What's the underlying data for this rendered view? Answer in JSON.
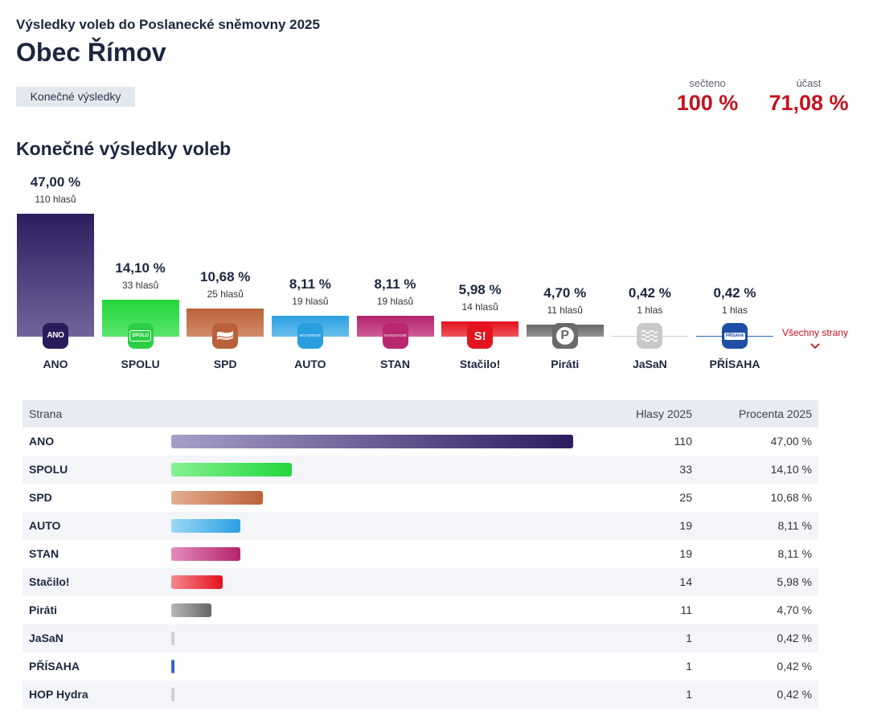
{
  "header": {
    "subtitle": "Výsledky voleb do Poslanecké sněmovny 2025",
    "title": "Obec Římov",
    "tab_label": "Konečné výsledky",
    "counted_label": "sečteno",
    "counted_value": "100 %",
    "turnout_label": "účast",
    "turnout_value": "71,08 %"
  },
  "chart_data": {
    "type": "bar",
    "title": "Konečné výsledky voleb",
    "ylim": [
      0,
      47
    ],
    "categories": [
      "ANO",
      "SPOLU",
      "SPD",
      "AUTO",
      "STAN",
      "Stačilo!",
      "Piráti",
      "JaSaN",
      "PŘÍSAHA"
    ],
    "values": [
      47.0,
      14.1,
      10.68,
      8.11,
      8.11,
      5.98,
      4.7,
      0.42,
      0.42
    ],
    "value_labels": [
      "47,00 %",
      "14,10 %",
      "10,68 %",
      "8,11 %",
      "8,11 %",
      "5,98 %",
      "4,70 %",
      "0,42 %",
      "0,42 %"
    ],
    "vote_labels": [
      "110 hlasů",
      "33 hlasů",
      "25 hlasů",
      "19 hlasů",
      "19 hlasů",
      "14 hlasů",
      "11 hlasů",
      "1 hlas",
      "1 hlas"
    ],
    "colors": [
      {
        "dark": "#2d1d5f",
        "light": "#a79ec9"
      },
      {
        "dark": "#22d63c",
        "light": "#86f193"
      },
      {
        "dark": "#bb6238",
        "light": "#e3ae92"
      },
      {
        "dark": "#2b9fe2",
        "light": "#9ad8f4"
      },
      {
        "dark": "#b3236c",
        "light": "#e38cbb"
      },
      {
        "dark": "#e3121d",
        "light": "#f5888c"
      },
      {
        "dark": "#666666",
        "light": "#b8b8b8"
      },
      {
        "dark": "#cccccc",
        "light": "#d6d6d6"
      },
      {
        "dark": "#2a5bbd",
        "light": "#3d72d4"
      }
    ],
    "logos": [
      {
        "icon": "ano-logo-icon",
        "bg": "#2a1c5a",
        "text": "ANO"
      },
      {
        "icon": "spolu-logo-icon",
        "bg": "#2bcf43",
        "text": "SPOLU"
      },
      {
        "icon": "spd-logo-icon",
        "bg": "#b8613a"
      },
      {
        "icon": "motoriste-logo-icon",
        "bg": "#2a9fe0",
        "text": "MOTORISTÉ"
      },
      {
        "icon": "stan-logo-icon",
        "bg": "#b8276f",
        "text": "STAROSTOVÉ"
      },
      {
        "icon": "stacilo-logo-icon",
        "bg": "#e2141f",
        "text": "S!"
      },
      {
        "icon": "pirati-logo-icon",
        "bg": "#6a6a6a",
        "text": "P"
      },
      {
        "icon": "jasan-logo-icon",
        "bg": "#c9c9c9"
      },
      {
        "icon": "prisaha-logo-icon",
        "bg": "#1f4ea6",
        "text": "PŘÍSAHA"
      }
    ]
  },
  "all_parties_link": {
    "label": "Všechny strany"
  },
  "table": {
    "columns": [
      "Strana",
      "Hlasy 2025",
      "Procenta 2025"
    ],
    "rows": [
      {
        "name": "ANO",
        "votes": "110",
        "percent": 47.0,
        "percent_label": "47,00 %",
        "dark": "#2d1d5f",
        "light": "#a79ec9"
      },
      {
        "name": "SPOLU",
        "votes": "33",
        "percent": 14.1,
        "percent_label": "14,10 %",
        "dark": "#22d63c",
        "light": "#86f193"
      },
      {
        "name": "SPD",
        "votes": "25",
        "percent": 10.68,
        "percent_label": "10,68 %",
        "dark": "#bb6238",
        "light": "#e3ae92"
      },
      {
        "name": "AUTO",
        "votes": "19",
        "percent": 8.11,
        "percent_label": "8,11 %",
        "dark": "#2b9fe2",
        "light": "#9ad8f4"
      },
      {
        "name": "STAN",
        "votes": "19",
        "percent": 8.11,
        "percent_label": "8,11 %",
        "dark": "#b3236c",
        "light": "#e38cbb"
      },
      {
        "name": "Stačilo!",
        "votes": "14",
        "percent": 5.98,
        "percent_label": "5,98 %",
        "dark": "#e3121d",
        "light": "#f5888c"
      },
      {
        "name": "Piráti",
        "votes": "11",
        "percent": 4.7,
        "percent_label": "4,70 %",
        "dark": "#666666",
        "light": "#b8b8b8"
      },
      {
        "name": "JaSaN",
        "votes": "1",
        "percent": 0.42,
        "percent_label": "0,42 %",
        "dark": "#cccccc",
        "light": "#d6d6d6"
      },
      {
        "name": "PŘÍSAHA",
        "votes": "1",
        "percent": 0.42,
        "percent_label": "0,42 %",
        "dark": "#2a5bbd",
        "light": "#3d72d4"
      },
      {
        "name": "HOP Hydra",
        "votes": "1",
        "percent": 0.42,
        "percent_label": "0,42 %",
        "dark": "#cccccc",
        "light": "#d6d6d6"
      }
    ]
  }
}
